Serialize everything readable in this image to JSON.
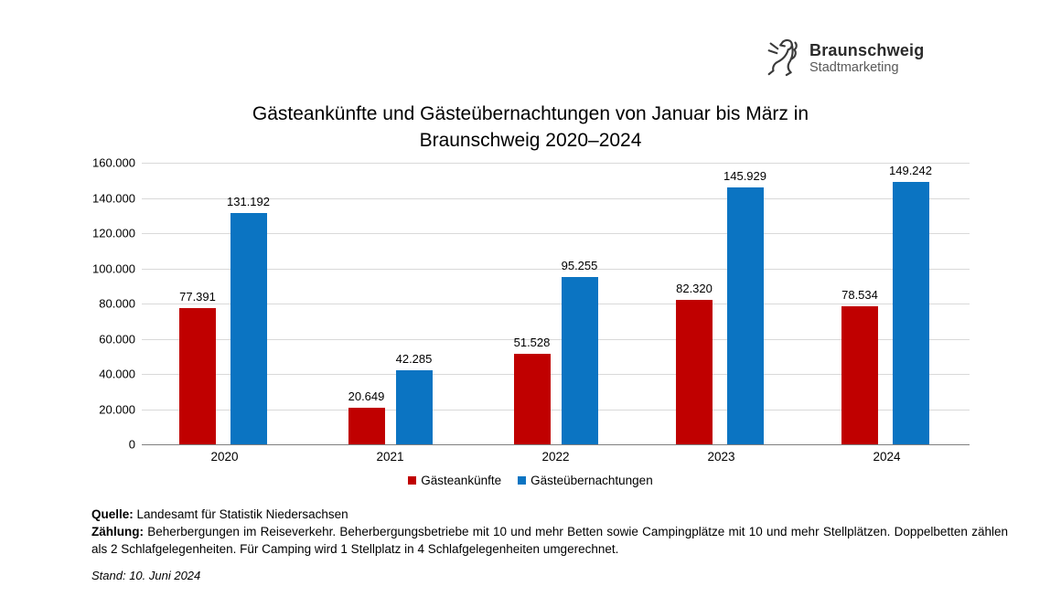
{
  "logo": {
    "brand": "Braunschweig",
    "sub": "Stadtmarketing",
    "icon": "braunschweig-lion-icon"
  },
  "chart_data": {
    "type": "bar",
    "title": "Gästeankünfte und Gästeübernachtungen von Januar bis März in Braunschweig 2020–2024",
    "title_line1": "Gästeankünfte und Gästeübernachtungen von Januar bis März in",
    "title_line2": "Braunschweig 2020–2024",
    "categories": [
      "2020",
      "2021",
      "2022",
      "2023",
      "2024"
    ],
    "series": [
      {
        "name": "Gästeankünfte",
        "color": "#C00000",
        "values": [
          77391,
          20649,
          51528,
          82320,
          78534
        ],
        "labels": [
          "77.391",
          "20.649",
          "51.528",
          "82.320",
          "78.534"
        ]
      },
      {
        "name": "Gästeübernachtungen",
        "color": "#0B74C2",
        "values": [
          131192,
          42285,
          95255,
          145929,
          149242
        ],
        "labels": [
          "131.192",
          "42.285",
          "95.255",
          "145.929",
          "149.242"
        ]
      }
    ],
    "xlabel": "",
    "ylabel": "",
    "ylim": [
      0,
      160000
    ],
    "ytick_step": 20000,
    "yticks": [
      "160.000",
      "140.000",
      "120.000",
      "100.000",
      "80.000",
      "60.000",
      "40.000",
      "20.000",
      "0"
    ],
    "grid": true,
    "gridline_color": "#d9d9d9",
    "axisline_color": "#7f7f7f",
    "legend_position": "bottom"
  },
  "footer": {
    "source_label": "Quelle:",
    "source_text": "Landesamt für Statistik Niedersachsen",
    "counting_label": "Zählung:",
    "counting_text": "Beherbergungen im Reiseverkehr. Beherbergungsbetriebe mit 10 und mehr Betten sowie Campingplätze mit 10 und mehr Stellplätzen. Doppelbetten zählen als 2 Schlafgelegenheiten. Für Camping wird 1 Stellplatz in 4 Schlafgelegenheiten umgerechnet.",
    "stand_text": "Stand: 10. Juni 2024"
  }
}
